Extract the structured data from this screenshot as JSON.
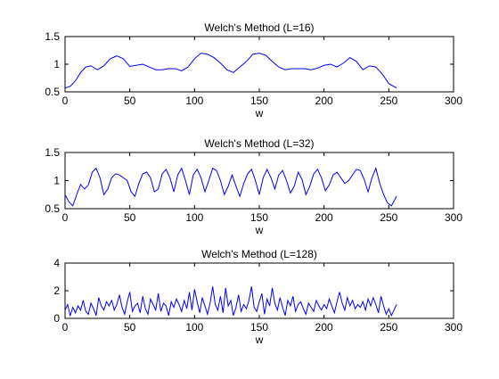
{
  "chart_data": [
    {
      "type": "line",
      "title": "Welch's Method (L=16)",
      "xlabel": "w",
      "ylabel": "",
      "xlim": [
        0,
        300
      ],
      "ylim": [
        0.5,
        1.5
      ],
      "xticks": [
        "0",
        "50",
        "100",
        "150",
        "200",
        "250",
        "300"
      ],
      "yticks": [
        "0.5",
        "1",
        "1.5"
      ],
      "xtick_values": [
        0,
        50,
        100,
        150,
        200,
        250,
        300
      ],
      "ytick_values": [
        0.5,
        1,
        1.5
      ],
      "grid": false,
      "color": "#0000ff",
      "series": [
        {
          "x": [
            0,
            4,
            8,
            12,
            16,
            20,
            25,
            30,
            35,
            40,
            45,
            50,
            55,
            60,
            65,
            70,
            75,
            80,
            85,
            90,
            95,
            100,
            105,
            110,
            115,
            120,
            125,
            130,
            135,
            140,
            145,
            150,
            155,
            160,
            165,
            170,
            175,
            180,
            185,
            190,
            195,
            200,
            205,
            210,
            215,
            220,
            225,
            230,
            235,
            240,
            245,
            250,
            256
          ],
          "y": [
            0.57,
            0.6,
            0.7,
            0.85,
            0.95,
            0.97,
            0.9,
            0.97,
            1.1,
            1.15,
            1.1,
            0.96,
            0.98,
            1.0,
            0.95,
            0.9,
            0.9,
            0.92,
            0.92,
            0.88,
            0.95,
            1.1,
            1.2,
            1.18,
            1.12,
            1.02,
            0.9,
            0.85,
            0.95,
            1.05,
            1.18,
            1.2,
            1.16,
            1.05,
            0.95,
            0.9,
            0.92,
            0.92,
            0.92,
            0.9,
            0.93,
            0.98,
            1.0,
            0.95,
            1.02,
            1.12,
            1.05,
            0.9,
            0.97,
            0.95,
            0.82,
            0.65,
            0.57
          ]
        }
      ]
    },
    {
      "type": "line",
      "title": "Welch's Method (L=32)",
      "xlabel": "w",
      "ylabel": "",
      "xlim": [
        0,
        300
      ],
      "ylim": [
        0.5,
        1.5
      ],
      "xticks": [
        "0",
        "50",
        "100",
        "150",
        "200",
        "250",
        "300"
      ],
      "yticks": [
        "0.5",
        "1",
        "1.5"
      ],
      "xtick_values": [
        0,
        50,
        100,
        150,
        200,
        250,
        300
      ],
      "ytick_values": [
        0.5,
        1,
        1.5
      ],
      "grid": false,
      "color": "#0000ff",
      "series": [
        {
          "x": [
            0,
            3,
            6,
            9,
            12,
            15,
            18,
            21,
            24,
            27,
            30,
            33,
            36,
            39,
            42,
            45,
            48,
            51,
            54,
            57,
            60,
            63,
            66,
            69,
            72,
            75,
            78,
            81,
            84,
            87,
            90,
            93,
            96,
            99,
            102,
            105,
            108,
            111,
            114,
            117,
            120,
            123,
            126,
            129,
            132,
            135,
            138,
            141,
            144,
            147,
            150,
            153,
            156,
            159,
            162,
            165,
            168,
            171,
            174,
            177,
            180,
            183,
            186,
            189,
            192,
            195,
            198,
            201,
            204,
            207,
            210,
            213,
            216,
            219,
            222,
            225,
            228,
            231,
            234,
            237,
            240,
            243,
            246,
            249,
            252,
            256
          ],
          "y": [
            0.75,
            0.62,
            0.55,
            0.75,
            0.93,
            0.85,
            0.92,
            1.15,
            1.22,
            1.05,
            0.75,
            0.85,
            1.05,
            1.12,
            1.1,
            1.05,
            1.0,
            0.8,
            0.72,
            0.95,
            1.12,
            1.15,
            1.05,
            0.8,
            0.85,
            1.12,
            1.2,
            1.05,
            0.8,
            1.1,
            1.22,
            1.0,
            0.75,
            1.1,
            1.2,
            1.05,
            0.8,
            1.0,
            1.22,
            1.18,
            1.0,
            0.75,
            0.9,
            1.1,
            0.9,
            0.72,
            0.95,
            1.12,
            1.2,
            1.0,
            0.75,
            1.05,
            1.2,
            1.05,
            0.85,
            1.1,
            1.18,
            1.0,
            0.78,
            0.9,
            1.15,
            1.02,
            0.75,
            0.9,
            1.12,
            1.2,
            1.05,
            0.82,
            0.92,
            1.1,
            1.15,
            1.05,
            0.95,
            1.0,
            1.1,
            1.2,
            1.18,
            1.02,
            0.8,
            1.05,
            1.22,
            0.95,
            0.75,
            0.6,
            0.55,
            0.72
          ]
        }
      ]
    },
    {
      "type": "line",
      "title": "Welch's Method (L=128)",
      "xlabel": "w",
      "ylabel": "",
      "xlim": [
        0,
        300
      ],
      "ylim": [
        0,
        4
      ],
      "xticks": [
        "0",
        "50",
        "100",
        "150",
        "200",
        "250",
        "300"
      ],
      "yticks": [
        "0",
        "2",
        "4"
      ],
      "xtick_values": [
        0,
        50,
        100,
        150,
        200,
        250,
        300
      ],
      "ytick_values": [
        0,
        2,
        4
      ],
      "grid": false,
      "color": "#0000ff",
      "series": [
        {
          "x": [
            0,
            2,
            4,
            6,
            8,
            10,
            12,
            14,
            16,
            18,
            20,
            22,
            24,
            26,
            28,
            30,
            32,
            34,
            36,
            38,
            40,
            42,
            44,
            46,
            48,
            50,
            52,
            54,
            56,
            58,
            60,
            62,
            64,
            66,
            68,
            70,
            72,
            74,
            76,
            78,
            80,
            82,
            84,
            86,
            88,
            90,
            92,
            94,
            96,
            98,
            100,
            102,
            104,
            106,
            108,
            110,
            112,
            114,
            116,
            118,
            120,
            122,
            124,
            126,
            128,
            130,
            132,
            134,
            136,
            138,
            140,
            142,
            144,
            146,
            148,
            150,
            152,
            154,
            156,
            158,
            160,
            162,
            164,
            166,
            168,
            170,
            172,
            174,
            176,
            178,
            180,
            182,
            184,
            186,
            188,
            190,
            192,
            194,
            196,
            198,
            200,
            202,
            204,
            206,
            208,
            210,
            212,
            214,
            216,
            218,
            220,
            222,
            224,
            226,
            228,
            230,
            232,
            234,
            236,
            238,
            240,
            242,
            244,
            246,
            248,
            250,
            252,
            254,
            256
          ],
          "y": [
            0.6,
            1.0,
            0.2,
            0.8,
            0.4,
            0.9,
            0.6,
            1.3,
            0.5,
            0.3,
            1.1,
            0.7,
            0.2,
            1.5,
            0.9,
            0.6,
            1.2,
            0.9,
            1.3,
            0.6,
            1.0,
            1.7,
            0.8,
            0.3,
            1.2,
            1.9,
            0.5,
            0.9,
            1.1,
            0.4,
            1.6,
            0.7,
            0.3,
            1.4,
            1.0,
            0.6,
            1.8,
            0.5,
            1.1,
            0.9,
            0.2,
            1.2,
            0.8,
            1.4,
            1.0,
            0.5,
            1.3,
            0.7,
            1.9,
            0.6,
            2.1,
            1.2,
            0.4,
            1.5,
            0.9,
            0.3,
            1.1,
            2.3,
            1.0,
            0.6,
            1.6,
            0.4,
            2.2,
            0.9,
            1.3,
            0.2,
            0.8,
            1.7,
            0.5,
            1.0,
            0.7,
            1.3,
            2.3,
            0.8,
            0.5,
            1.2,
            1.8,
            0.3,
            1.4,
            0.9,
            2.2,
            1.1,
            0.6,
            1.5,
            0.8,
            0.2,
            1.3,
            0.9,
            1.6,
            0.5,
            1.0,
            1.2,
            0.7,
            0.3,
            1.1,
            0.8,
            0.5,
            1.3,
            0.9,
            0.6,
            1.0,
            0.7,
            1.4,
            0.9,
            0.4,
            1.2,
            1.9,
            1.1,
            0.6,
            1.5,
            0.9,
            1.3,
            0.7,
            1.0,
            0.8,
            1.2,
            0.6,
            1.4,
            0.9,
            1.5,
            1.0,
            0.4,
            1.6,
            0.9,
            0.3,
            0.7,
            0.2,
            0.6,
            1.0
          ]
        }
      ]
    }
  ]
}
